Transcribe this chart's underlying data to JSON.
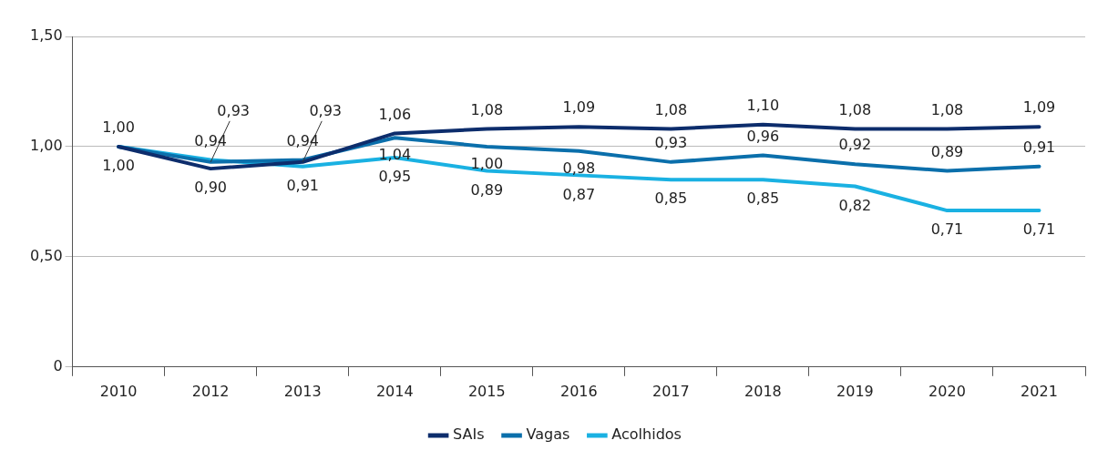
{
  "chart_data": {
    "type": "line",
    "categories": [
      "2010",
      "2012",
      "2013",
      "2014",
      "2015",
      "2016",
      "2017",
      "2018",
      "2019",
      "2020",
      "2021"
    ],
    "ylim": [
      0,
      1.5
    ],
    "yticks": [
      {
        "value": 0,
        "label": "0"
      },
      {
        "value": 0.5,
        "label": "0,50"
      },
      {
        "value": 1,
        "label": "1,00"
      },
      {
        "value": 1.5,
        "label": "1,50"
      }
    ],
    "grid": "y",
    "legend": "bottom",
    "marker": "none",
    "line_style": "solid",
    "series": [
      {
        "name": "SAIs",
        "color": "#0d2d6c",
        "values": [
          1.0,
          0.9,
          0.93,
          1.06,
          1.08,
          1.09,
          1.08,
          1.1,
          1.08,
          1.08,
          1.09
        ],
        "value_labels": [
          "1,00",
          "0,90",
          "0,93",
          "1,06",
          "1,08",
          "1,09",
          "1,08",
          "1,10",
          "1,08",
          "1,08",
          "1,09"
        ]
      },
      {
        "name": "Vagas",
        "color": "#0b6fab",
        "values": [
          1.0,
          0.93,
          0.94,
          1.04,
          1.0,
          0.98,
          0.93,
          0.96,
          0.92,
          0.89,
          0.91
        ],
        "value_labels": [
          null,
          "0,93",
          "0,94",
          "1,04",
          "1,00",
          "0,98",
          "0,93",
          "0,96",
          "0,92",
          "0,89",
          "0,91"
        ]
      },
      {
        "name": "Acolhidos",
        "color": "#1ab1e2",
        "values": [
          1.0,
          0.94,
          0.91,
          0.95,
          0.89,
          0.87,
          0.85,
          0.85,
          0.82,
          0.71,
          0.71
        ],
        "value_labels": [
          "1,00",
          "0,94",
          "0,91",
          "0,95",
          "0,89",
          "0,87",
          "0,85",
          "0,85",
          "0,82",
          "0,71",
          "0,71"
        ]
      }
    ]
  }
}
